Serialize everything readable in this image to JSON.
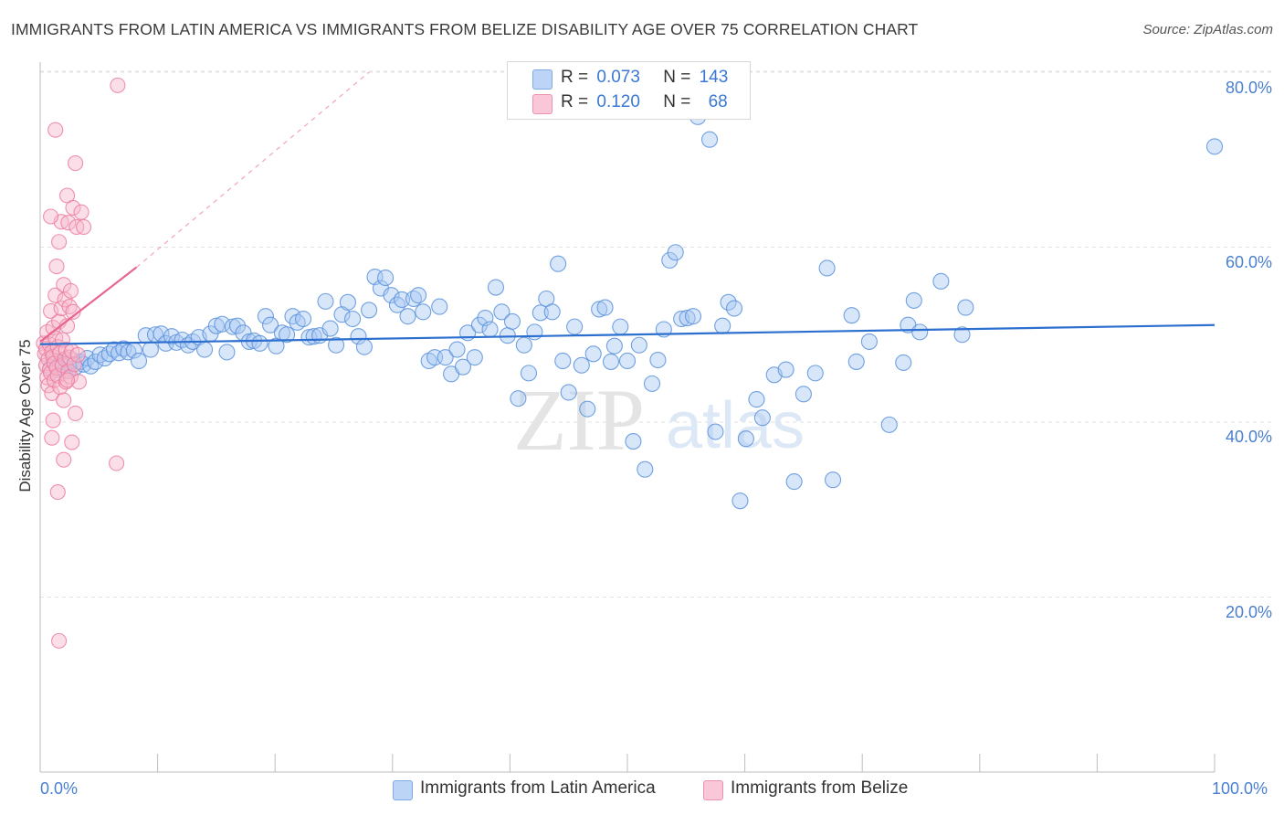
{
  "title": "IMMIGRANTS FROM LATIN AMERICA VS IMMIGRANTS FROM BELIZE DISABILITY AGE OVER 75 CORRELATION CHART",
  "source": "Source: ZipAtlas.com",
  "watermark": {
    "zip": "ZIP",
    "atlas": "atlas"
  },
  "legend": {
    "r_label": "R =",
    "n_label": "N =",
    "rows": [
      {
        "r": "0.073",
        "n": "143",
        "color": "#8fb7ef"
      },
      {
        "r": "0.120",
        "n": "68",
        "color": "#f4a3bf"
      }
    ]
  },
  "bottom_legend": [
    "Immigrants from Latin America",
    "Immigrants from Belize"
  ],
  "colors": {
    "blue_fill": "#a9c8f3",
    "blue_stroke": "#5b92da",
    "blue_line": "#2c6fcf",
    "pink_fill": "#f7b9cd",
    "pink_stroke": "#ec7ea0",
    "pink_line": "#e8658f",
    "axis_label": "#4a7fcf",
    "grid": "#e2e2e2"
  },
  "chart_data": {
    "type": "scatter",
    "title": "IMMIGRANTS FROM LATIN AMERICA VS IMMIGRANTS FROM BELIZE DISABILITY AGE OVER 75 CORRELATION CHART",
    "xlabel": "",
    "ylabel": "Disability Age Over 75",
    "xlim": [
      0,
      100
    ],
    "ylim": [
      0,
      85
    ],
    "x_tick_labels": [
      "0.0%",
      "100.0%"
    ],
    "y_ticks": [
      20,
      40,
      60,
      80
    ],
    "y_tick_labels": [
      "20.0%",
      "40.0%",
      "60.0%",
      "80.0%"
    ],
    "grid": "horizontal dashed",
    "legend_position": "top-center",
    "series": [
      {
        "name": "Immigrants from Latin America",
        "r": 0.073,
        "n": 143,
        "trend": {
          "x": [
            0,
            100
          ],
          "y": [
            48.9,
            51.1
          ]
        },
        "points": [
          [
            0.9,
            46.2
          ],
          [
            1.2,
            47.0
          ],
          [
            1.5,
            46.0
          ],
          [
            1.8,
            46.8
          ],
          [
            2.1,
            45.9
          ],
          [
            2.4,
            46.7
          ],
          [
            2.7,
            47.1
          ],
          [
            3.0,
            46.3
          ],
          [
            3.4,
            46.9
          ],
          [
            3.7,
            46.6
          ],
          [
            4.0,
            47.3
          ],
          [
            4.3,
            46.4
          ],
          [
            4.7,
            46.9
          ],
          [
            5.1,
            47.7
          ],
          [
            5.5,
            47.3
          ],
          [
            5.9,
            47.8
          ],
          [
            6.3,
            48.3
          ],
          [
            6.7,
            47.9
          ],
          [
            7.1,
            48.4
          ],
          [
            7.5,
            48.0
          ],
          [
            8.0,
            48.2
          ],
          [
            8.4,
            47.0
          ],
          [
            9.0,
            49.9
          ],
          [
            9.4,
            48.3
          ],
          [
            9.8,
            50.0
          ],
          [
            10.3,
            50.1
          ],
          [
            10.7,
            49.0
          ],
          [
            11.2,
            49.8
          ],
          [
            11.6,
            49.1
          ],
          [
            12.1,
            49.4
          ],
          [
            12.6,
            48.8
          ],
          [
            13.0,
            49.2
          ],
          [
            13.5,
            49.7
          ],
          [
            14.0,
            48.3
          ],
          [
            14.5,
            50.1
          ],
          [
            15.0,
            51.0
          ],
          [
            15.5,
            51.2
          ],
          [
            15.9,
            48.0
          ],
          [
            16.4,
            50.9
          ],
          [
            16.8,
            51.0
          ],
          [
            17.3,
            50.2
          ],
          [
            17.8,
            49.2
          ],
          [
            18.2,
            49.3
          ],
          [
            18.7,
            49.0
          ],
          [
            19.2,
            52.1
          ],
          [
            19.6,
            51.1
          ],
          [
            20.1,
            48.7
          ],
          [
            20.6,
            50.2
          ],
          [
            21.0,
            50.0
          ],
          [
            21.5,
            52.1
          ],
          [
            21.9,
            51.4
          ],
          [
            22.4,
            51.8
          ],
          [
            22.9,
            49.7
          ],
          [
            23.3,
            49.8
          ],
          [
            23.8,
            49.9
          ],
          [
            24.3,
            53.8
          ],
          [
            24.7,
            50.7
          ],
          [
            25.2,
            48.8
          ],
          [
            25.7,
            52.3
          ],
          [
            26.2,
            53.7
          ],
          [
            26.6,
            51.8
          ],
          [
            27.1,
            49.8
          ],
          [
            27.6,
            48.6
          ],
          [
            28.0,
            52.8
          ],
          [
            28.5,
            56.6
          ],
          [
            29.0,
            55.3
          ],
          [
            29.4,
            56.5
          ],
          [
            29.9,
            54.5
          ],
          [
            30.4,
            53.4
          ],
          [
            30.8,
            54.0
          ],
          [
            31.3,
            52.1
          ],
          [
            31.8,
            54.1
          ],
          [
            32.2,
            54.5
          ],
          [
            32.6,
            52.6
          ],
          [
            33.1,
            47.0
          ],
          [
            33.6,
            47.4
          ],
          [
            34.0,
            53.2
          ],
          [
            34.5,
            47.4
          ],
          [
            35.0,
            45.5
          ],
          [
            35.5,
            48.3
          ],
          [
            36.0,
            46.3
          ],
          [
            36.4,
            50.2
          ],
          [
            37.0,
            47.4
          ],
          [
            37.4,
            51.1
          ],
          [
            37.9,
            51.9
          ],
          [
            38.3,
            50.6
          ],
          [
            38.8,
            55.4
          ],
          [
            39.3,
            52.6
          ],
          [
            39.8,
            49.9
          ],
          [
            40.2,
            51.5
          ],
          [
            40.7,
            42.7
          ],
          [
            41.2,
            48.8
          ],
          [
            41.6,
            45.6
          ],
          [
            42.1,
            50.3
          ],
          [
            42.6,
            52.5
          ],
          [
            43.1,
            54.1
          ],
          [
            43.6,
            52.6
          ],
          [
            44.1,
            58.1
          ],
          [
            44.5,
            47.0
          ],
          [
            45.0,
            43.4
          ],
          [
            45.5,
            50.9
          ],
          [
            46.1,
            46.5
          ],
          [
            46.6,
            41.5
          ],
          [
            47.1,
            47.8
          ],
          [
            47.6,
            52.9
          ],
          [
            48.1,
            53.1
          ],
          [
            48.6,
            46.9
          ],
          [
            48.9,
            48.7
          ],
          [
            49.4,
            50.9
          ],
          [
            50.0,
            47.0
          ],
          [
            50.5,
            37.8
          ],
          [
            51.0,
            48.8
          ],
          [
            51.5,
            34.6
          ],
          [
            52.1,
            44.4
          ],
          [
            52.6,
            47.1
          ],
          [
            53.1,
            50.6
          ],
          [
            53.6,
            58.5
          ],
          [
            54.1,
            59.4
          ],
          [
            54.6,
            51.8
          ],
          [
            55.1,
            51.9
          ],
          [
            55.6,
            52.1
          ],
          [
            56.0,
            74.9
          ],
          [
            56.5,
            77.3
          ],
          [
            57.0,
            72.3
          ],
          [
            57.5,
            38.9
          ],
          [
            58.1,
            51.0
          ],
          [
            58.6,
            53.7
          ],
          [
            59.1,
            53.0
          ],
          [
            59.6,
            31.0
          ],
          [
            60.1,
            38.1
          ],
          [
            61.0,
            42.6
          ],
          [
            61.5,
            40.5
          ],
          [
            62.5,
            45.4
          ],
          [
            63.5,
            46.0
          ],
          [
            64.2,
            33.2
          ],
          [
            65.0,
            43.2
          ],
          [
            66.0,
            45.6
          ],
          [
            67.0,
            57.6
          ],
          [
            67.5,
            33.4
          ],
          [
            69.1,
            52.2
          ],
          [
            69.5,
            46.9
          ],
          [
            70.6,
            49.2
          ],
          [
            72.3,
            39.7
          ],
          [
            73.5,
            46.8
          ],
          [
            73.9,
            51.1
          ],
          [
            74.4,
            53.9
          ],
          [
            74.9,
            50.3
          ],
          [
            76.7,
            56.1
          ],
          [
            78.5,
            50.0
          ],
          [
            78.8,
            53.1
          ],
          [
            100.0,
            71.5
          ]
        ]
      },
      {
        "name": "Immigrants from Belize",
        "r": 0.12,
        "n": 68,
        "trend_solid": {
          "x": [
            0.0,
            8.2
          ],
          "y": [
            49.2,
            57.7
          ]
        },
        "trend_dashed": {
          "x": [
            8.2,
            28.0
          ],
          "y": [
            57.7,
            80.0
          ]
        },
        "points": [
          [
            0.3,
            49.0
          ],
          [
            0.4,
            47.8
          ],
          [
            0.5,
            46.5
          ],
          [
            0.5,
            48.4
          ],
          [
            0.6,
            45.1
          ],
          [
            0.6,
            50.3
          ],
          [
            0.7,
            44.2
          ],
          [
            0.7,
            47.2
          ],
          [
            0.8,
            46.0
          ],
          [
            0.8,
            48.9
          ],
          [
            0.9,
            52.7
          ],
          [
            0.9,
            45.6
          ],
          [
            1.0,
            48.0
          ],
          [
            1.0,
            43.3
          ],
          [
            1.1,
            47.5
          ],
          [
            1.1,
            50.8
          ],
          [
            1.2,
            46.7
          ],
          [
            1.2,
            44.8
          ],
          [
            1.3,
            49.6
          ],
          [
            1.3,
            54.5
          ],
          [
            1.4,
            46.2
          ],
          [
            1.4,
            57.8
          ],
          [
            1.5,
            45.3
          ],
          [
            1.5,
            48.6
          ],
          [
            1.6,
            51.5
          ],
          [
            1.6,
            60.6
          ],
          [
            1.7,
            44.0
          ],
          [
            1.7,
            47.9
          ],
          [
            1.8,
            53.0
          ],
          [
            1.8,
            62.9
          ],
          [
            1.9,
            46.5
          ],
          [
            1.9,
            49.4
          ],
          [
            2.0,
            55.7
          ],
          [
            2.0,
            42.5
          ],
          [
            2.1,
            47.2
          ],
          [
            2.1,
            54.0
          ],
          [
            2.2,
            44.6
          ],
          [
            2.2,
            48.3
          ],
          [
            2.3,
            51.0
          ],
          [
            2.3,
            65.9
          ],
          [
            2.4,
            45.8
          ],
          [
            2.4,
            62.8
          ],
          [
            2.5,
            53.2
          ],
          [
            2.5,
            47.4
          ],
          [
            2.6,
            55.0
          ],
          [
            2.6,
            45.2
          ],
          [
            2.7,
            48.1
          ],
          [
            2.7,
            37.7
          ],
          [
            2.8,
            52.6
          ],
          [
            2.8,
            64.5
          ],
          [
            2.9,
            46.6
          ],
          [
            3.0,
            69.6
          ],
          [
            3.0,
            41.0
          ],
          [
            3.1,
            62.3
          ],
          [
            3.2,
            47.7
          ],
          [
            3.3,
            44.6
          ],
          [
            3.5,
            64.0
          ],
          [
            3.7,
            62.3
          ],
          [
            1.0,
            38.2
          ],
          [
            1.1,
            40.2
          ],
          [
            1.3,
            73.4
          ],
          [
            1.5,
            32.0
          ],
          [
            1.6,
            15.0
          ],
          [
            2.0,
            35.7
          ],
          [
            2.3,
            44.8
          ],
          [
            0.9,
            63.5
          ],
          [
            6.6,
            78.5
          ],
          [
            6.5,
            35.3
          ]
        ]
      }
    ]
  }
}
